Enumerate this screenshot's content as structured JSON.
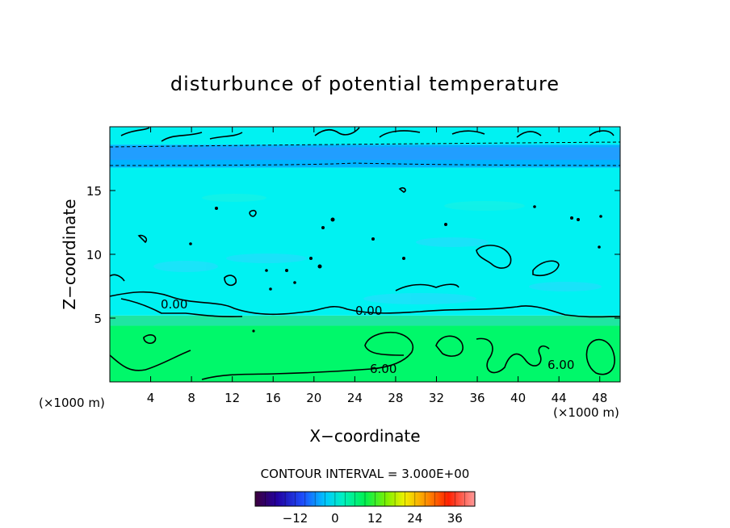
{
  "chart_data": {
    "type": "heatmap",
    "title": "disturbunce of potential temperature",
    "xlabel": "X−coordinate",
    "ylabel": "Z−coordinate",
    "x_unit": "(×1000 m)",
    "z_unit": "(×1000 m)",
    "xlim": [
      0,
      50
    ],
    "ylim": [
      0,
      20
    ],
    "x_ticks": [
      "4",
      "8",
      "12",
      "16",
      "20",
      "24",
      "28",
      "32",
      "36",
      "40",
      "44",
      "48"
    ],
    "y_ticks": [
      "5",
      "10",
      "15"
    ],
    "contour_interval_label": "CONTOUR INTERVAL = 3.000E+00",
    "contour_labels": [
      "0.00",
      "0.00",
      "6.00",
      "6.00"
    ],
    "colorbar": {
      "min": -24,
      "max": 42,
      "step": 3,
      "ticks": [
        "−12",
        "0",
        "12",
        "24",
        "36"
      ]
    },
    "bands": [
      {
        "z_from": 0,
        "z_to": 4.4,
        "value": 6
      },
      {
        "z_from": 4.4,
        "z_to": 5.2,
        "value": 3
      },
      {
        "z_from": 5.2,
        "z_to": 16.8,
        "value": 0
      },
      {
        "z_from": 16.8,
        "z_to": 18.6,
        "value": -3
      },
      {
        "z_from": 18.6,
        "z_to": 20,
        "value": 0
      }
    ],
    "grid": false,
    "colors": {
      "value_6": "#00f86a",
      "value_3": "#1ee6a2",
      "value_0": "#00f2f2",
      "value_-3": "#00b4ff",
      "value_-6": "#3c8cff"
    }
  }
}
